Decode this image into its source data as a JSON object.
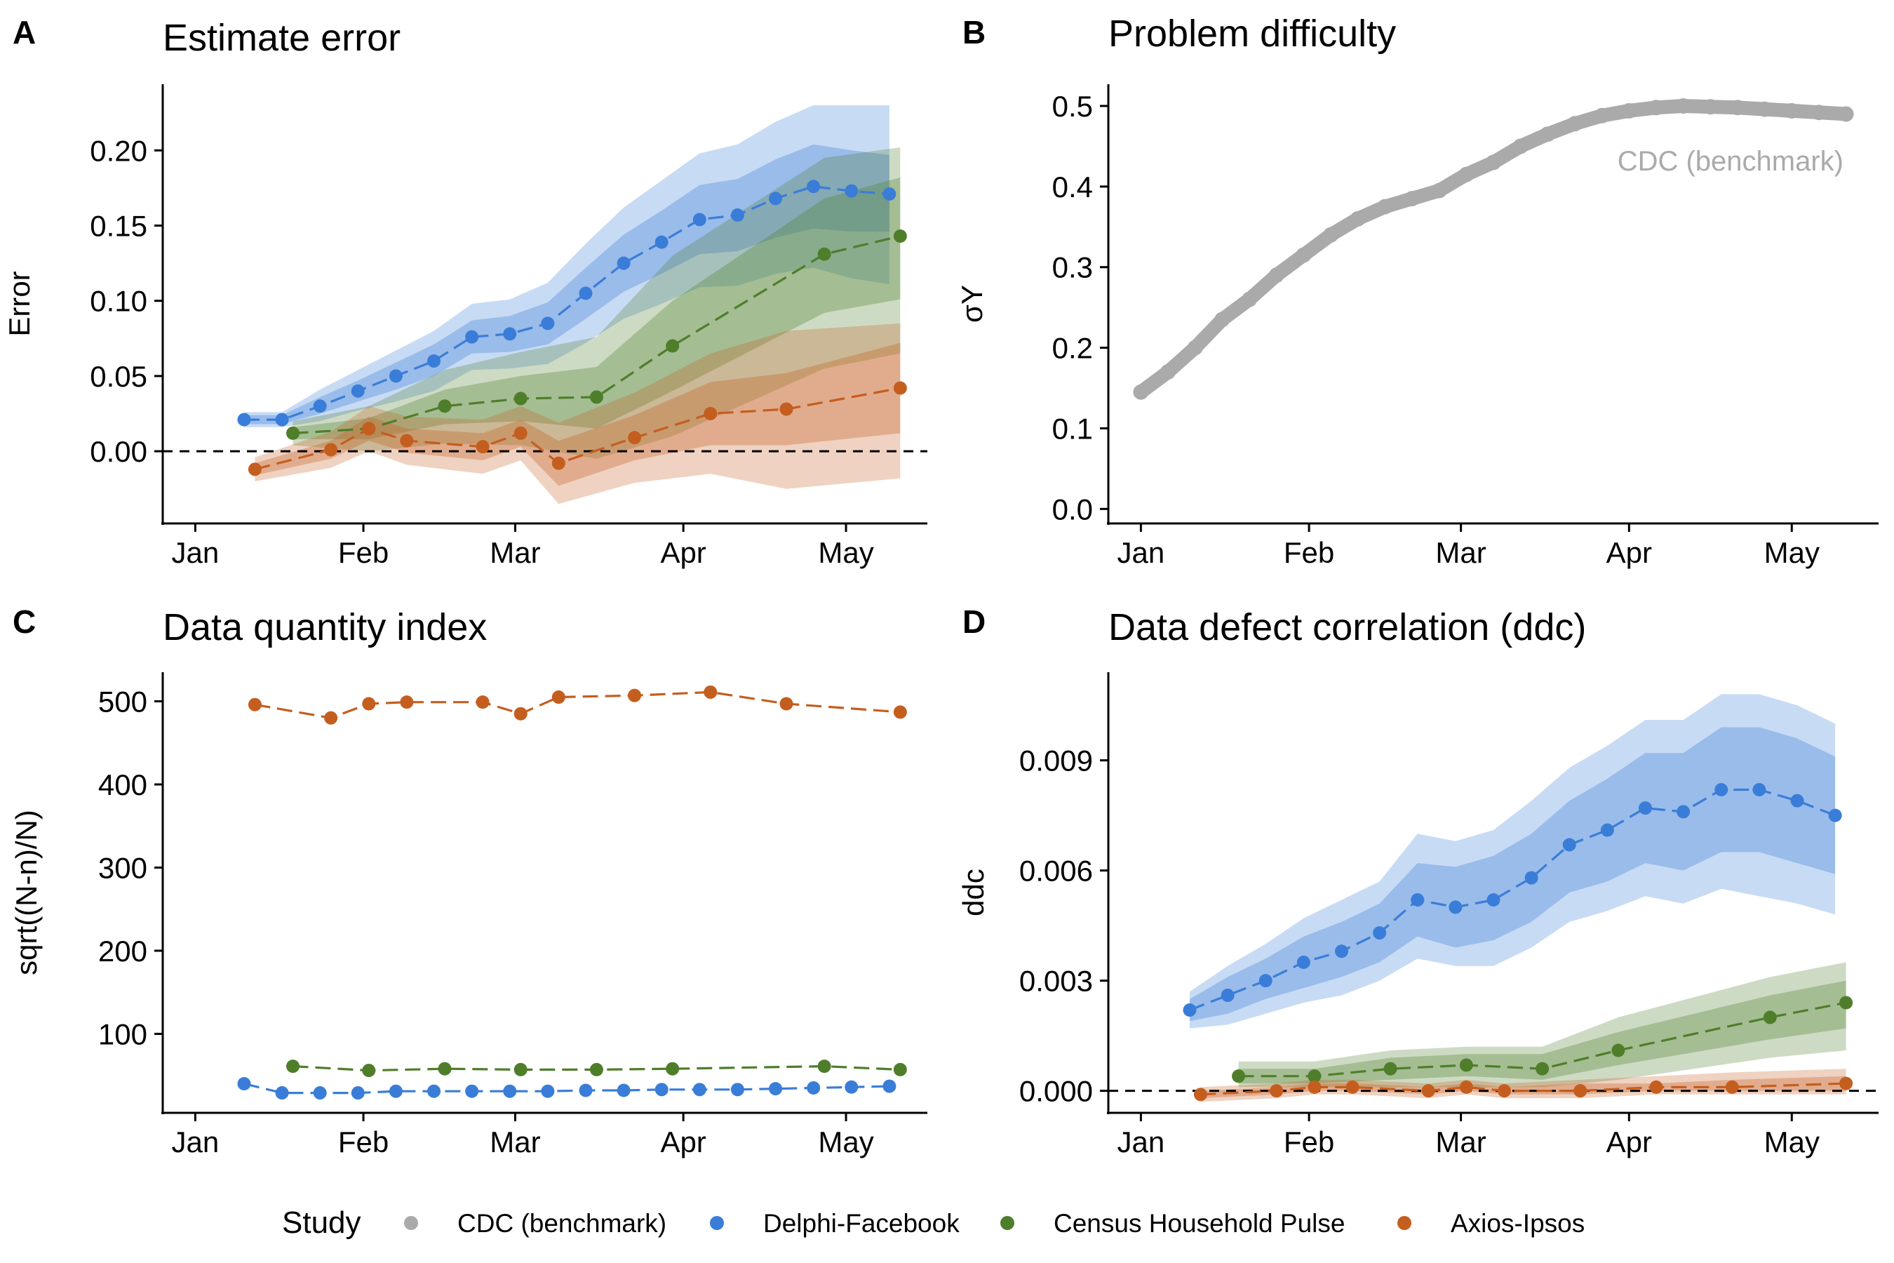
{
  "chart_data": [
    {
      "panel": "A",
      "type": "line",
      "title": "Estimate error",
      "ylabel": "Error",
      "xlabel": "",
      "x_ticks": [
        "Jan",
        "Feb",
        "Mar",
        "Apr",
        "May"
      ],
      "x_tick_days": [
        0,
        31,
        59,
        90,
        120
      ],
      "xlim": [
        -6,
        135
      ],
      "y_ticks": [
        "0.00",
        "0.05",
        "0.10",
        "0.15",
        "0.20"
      ],
      "y_tick_values": [
        0,
        0.05,
        0.1,
        0.15,
        0.2
      ],
      "ylim": [
        -0.048,
        0.244
      ],
      "reference_line": 0,
      "series": [
        {
          "name": "Delphi-Facebook",
          "color": "#3a7dd8",
          "x": [
            9,
            16,
            23,
            30,
            37,
            44,
            51,
            58,
            65,
            72,
            79,
            86,
            93,
            100,
            107,
            114,
            121,
            128
          ],
          "y": [
            0.021,
            0.021,
            0.03,
            0.04,
            0.05,
            0.06,
            0.076,
            0.078,
            0.085,
            0.105,
            0.125,
            0.139,
            0.154,
            0.157,
            0.168,
            0.176,
            0.173,
            0.171
          ],
          "band50_lo": [
            0.018,
            0.018,
            0.025,
            0.033,
            0.041,
            0.05,
            0.065,
            0.066,
            0.071,
            0.088,
            0.106,
            0.118,
            0.131,
            0.133,
            0.142,
            0.148,
            0.146,
            0.146
          ],
          "band50_hi": [
            0.024,
            0.024,
            0.036,
            0.047,
            0.059,
            0.071,
            0.087,
            0.09,
            0.099,
            0.122,
            0.144,
            0.16,
            0.177,
            0.181,
            0.194,
            0.204,
            0.2,
            0.197
          ],
          "band95_lo": [
            0.016,
            0.016,
            0.02,
            0.027,
            0.033,
            0.04,
            0.054,
            0.055,
            0.058,
            0.072,
            0.088,
            0.098,
            0.109,
            0.11,
            0.118,
            0.122,
            0.115,
            0.111
          ],
          "band95_hi": [
            0.026,
            0.026,
            0.041,
            0.054,
            0.067,
            0.08,
            0.098,
            0.101,
            0.112,
            0.138,
            0.162,
            0.18,
            0.198,
            0.204,
            0.219,
            0.23,
            0.23,
            0.23
          ]
        },
        {
          "name": "Census Household Pulse",
          "color": "#4e7e2a",
          "x": [
            18,
            32,
            46,
            60,
            74,
            88,
            116,
            130
          ],
          "y": [
            0.012,
            0.015,
            0.03,
            0.035,
            0.036,
            0.07,
            0.131,
            0.143
          ],
          "band50_lo": [
            0.008,
            0.008,
            0.018,
            0.02,
            0.015,
            0.04,
            0.092,
            0.101
          ],
          "band50_hi": [
            0.016,
            0.022,
            0.041,
            0.05,
            0.056,
            0.1,
            0.168,
            0.182
          ],
          "band95_lo": [
            0.004,
            0.0,
            0.005,
            0.004,
            -0.005,
            0.01,
            0.055,
            0.065
          ],
          "band95_hi": [
            0.02,
            0.03,
            0.054,
            0.066,
            0.076,
            0.13,
            0.195,
            0.202
          ]
        },
        {
          "name": "Axios-Ipsos",
          "color": "#c45e1f",
          "x": [
            11,
            25,
            32,
            39,
            53,
            60,
            67,
            81,
            95,
            109,
            130
          ],
          "y": [
            -0.012,
            0.001,
            0.015,
            0.007,
            0.003,
            0.012,
            -0.008,
            0.009,
            0.025,
            0.028,
            0.042
          ],
          "band50_lo": [
            -0.016,
            -0.005,
            0.007,
            -0.001,
            -0.006,
            0.003,
            -0.023,
            -0.006,
            0.004,
            0.004,
            0.012
          ],
          "band50_hi": [
            -0.008,
            0.007,
            0.023,
            0.015,
            0.012,
            0.021,
            0.007,
            0.024,
            0.046,
            0.052,
            0.072
          ],
          "band95_lo": [
            -0.02,
            -0.011,
            0.0,
            -0.009,
            -0.015,
            -0.006,
            -0.035,
            -0.021,
            -0.015,
            -0.025,
            -0.018
          ],
          "band95_hi": [
            -0.004,
            0.013,
            0.03,
            0.023,
            0.021,
            0.03,
            0.019,
            0.039,
            0.065,
            0.08,
            0.085
          ]
        }
      ]
    },
    {
      "panel": "B",
      "type": "line",
      "title": "Problem difficulty",
      "ylabel": "σY",
      "xlabel": "",
      "x_ticks": [
        "Jan",
        "Feb",
        "Mar",
        "Apr",
        "May"
      ],
      "x_tick_days": [
        0,
        31,
        59,
        90,
        120
      ],
      "xlim": [
        -6,
        136
      ],
      "y_ticks": [
        "0.0",
        "0.1",
        "0.2",
        "0.3",
        "0.4",
        "0.5"
      ],
      "y_tick_values": [
        0,
        0.1,
        0.2,
        0.3,
        0.4,
        0.5
      ],
      "ylim": [
        -0.018,
        0.527
      ],
      "annotation": "CDC (benchmark)",
      "series": [
        {
          "name": "CDC (benchmark)",
          "color": "#aaaaaa",
          "x": [
            0,
            5,
            10,
            15,
            20,
            25,
            30,
            35,
            40,
            45,
            50,
            55,
            60,
            65,
            70,
            75,
            80,
            85,
            90,
            95,
            100,
            105,
            110,
            115,
            120,
            125,
            130
          ],
          "y": [
            0.145,
            0.17,
            0.2,
            0.235,
            0.26,
            0.29,
            0.315,
            0.34,
            0.36,
            0.375,
            0.385,
            0.395,
            0.415,
            0.43,
            0.45,
            0.465,
            0.478,
            0.488,
            0.494,
            0.498,
            0.5,
            0.499,
            0.498,
            0.496,
            0.494,
            0.492,
            0.49
          ]
        }
      ]
    },
    {
      "panel": "C",
      "type": "line",
      "title": "Data quantity index",
      "ylabel": "sqrt((N-n)/N)",
      "xlabel": "",
      "x_ticks": [
        "Jan",
        "Feb",
        "Mar",
        "Apr",
        "May"
      ],
      "x_tick_days": [
        0,
        31,
        59,
        90,
        120
      ],
      "xlim": [
        -6,
        135
      ],
      "y_ticks": [
        "100",
        "200",
        "300",
        "400",
        "500"
      ],
      "y_tick_values": [
        100,
        200,
        300,
        400,
        500
      ],
      "ylim": [
        5,
        535
      ],
      "series": [
        {
          "name": "Axios-Ipsos",
          "color": "#c45e1f",
          "x": [
            11,
            25,
            32,
            39,
            53,
            60,
            67,
            81,
            95,
            109,
            130
          ],
          "y": [
            496,
            480,
            497,
            499,
            499,
            485,
            505,
            507,
            511,
            497,
            487
          ]
        },
        {
          "name": "Census Household Pulse",
          "color": "#4e7e2a",
          "x": [
            18,
            32,
            46,
            60,
            74,
            88,
            116,
            130
          ],
          "y": [
            61,
            56,
            58,
            57,
            57,
            58,
            61,
            57
          ]
        },
        {
          "name": "Delphi-Facebook",
          "color": "#3a7dd8",
          "x": [
            9,
            16,
            23,
            30,
            37,
            44,
            51,
            58,
            65,
            72,
            79,
            86,
            93,
            100,
            107,
            114,
            121,
            128
          ],
          "y": [
            40,
            29,
            29,
            29,
            31,
            31,
            31,
            31,
            31,
            32,
            32,
            33,
            33,
            33,
            34,
            35,
            36,
            37
          ]
        }
      ]
    },
    {
      "panel": "D",
      "type": "line",
      "title": "Data defect correlation (ddc)",
      "ylabel": "ddc",
      "xlabel": "",
      "x_ticks": [
        "Jan",
        "Feb",
        "Mar",
        "Apr",
        "May"
      ],
      "x_tick_days": [
        0,
        31,
        59,
        90,
        120
      ],
      "xlim": [
        -6,
        136
      ],
      "y_ticks": [
        "0.000",
        "0.003",
        "0.006",
        "0.009"
      ],
      "y_tick_values": [
        0,
        0.003,
        0.006,
        0.009
      ],
      "ylim": [
        -0.0006,
        0.0114
      ],
      "reference_line": 0,
      "series": [
        {
          "name": "Delphi-Facebook",
          "color": "#3a7dd8",
          "x": [
            9,
            16,
            23,
            30,
            37,
            44,
            51,
            58,
            65,
            72,
            79,
            86,
            93,
            100,
            107,
            114,
            121,
            128
          ],
          "y": [
            0.0022,
            0.0026,
            0.003,
            0.0035,
            0.0038,
            0.0043,
            0.0052,
            0.005,
            0.0052,
            0.0058,
            0.0067,
            0.0071,
            0.0077,
            0.0076,
            0.0082,
            0.0082,
            0.0079,
            0.0075
          ],
          "band50_lo": [
            0.0019,
            0.0021,
            0.0025,
            0.0028,
            0.0031,
            0.0035,
            0.0042,
            0.0039,
            0.0041,
            0.0046,
            0.0054,
            0.0057,
            0.0062,
            0.006,
            0.0065,
            0.0065,
            0.0062,
            0.0059
          ],
          "band50_hi": [
            0.0025,
            0.0031,
            0.0036,
            0.0042,
            0.0046,
            0.0051,
            0.0062,
            0.0061,
            0.0064,
            0.007,
            0.0079,
            0.0085,
            0.0092,
            0.0092,
            0.0099,
            0.0099,
            0.0096,
            0.0091
          ],
          "band95_lo": [
            0.0017,
            0.0018,
            0.0021,
            0.0024,
            0.0026,
            0.003,
            0.0036,
            0.0034,
            0.0034,
            0.0039,
            0.0046,
            0.0049,
            0.0053,
            0.0051,
            0.0055,
            0.0053,
            0.0051,
            0.0048
          ],
          "band95_hi": [
            0.0027,
            0.0034,
            0.004,
            0.0047,
            0.0052,
            0.0057,
            0.007,
            0.0068,
            0.0071,
            0.0079,
            0.0088,
            0.0094,
            0.0101,
            0.0101,
            0.0108,
            0.0108,
            0.0105,
            0.01
          ]
        },
        {
          "name": "Census Household Pulse",
          "color": "#4e7e2a",
          "x": [
            18,
            32,
            46,
            60,
            74,
            88,
            116,
            130
          ],
          "y": [
            0.0004,
            0.0004,
            0.0006,
            0.0007,
            0.0006,
            0.0011,
            0.002,
            0.0024
          ],
          "band50_lo": [
            0.0002,
            0.0002,
            0.0003,
            0.0004,
            0.0003,
            0.0007,
            0.0014,
            0.0017
          ],
          "band50_hi": [
            0.0006,
            0.0006,
            0.0009,
            0.001,
            0.001,
            0.0016,
            0.0026,
            0.003
          ],
          "band95_lo": [
            0.0001,
            0.0001,
            0.0001,
            0.0001,
            0.0001,
            0.0003,
            0.0009,
            0.0011
          ],
          "band95_hi": [
            0.0008,
            0.0008,
            0.0011,
            0.0012,
            0.0012,
            0.002,
            0.0031,
            0.0035
          ]
        },
        {
          "name": "Axios-Ipsos",
          "color": "#c45e1f",
          "x": [
            11,
            25,
            32,
            39,
            53,
            60,
            67,
            81,
            95,
            109,
            130
          ],
          "y": [
            -0.0001,
            0.0,
            0.0001,
            0.0001,
            0.0,
            0.0001,
            0.0,
            0.0,
            0.0001,
            0.0001,
            0.0002
          ],
          "band50_lo": [
            -0.0002,
            -0.0001,
            0.0,
            0.0,
            -0.0001,
            0.0,
            -0.0001,
            -0.0001,
            0.0,
            0.0,
            0.0
          ],
          "band50_hi": [
            0.0,
            0.0001,
            0.0002,
            0.0002,
            0.0001,
            0.0002,
            0.0001,
            0.0002,
            0.0002,
            0.0003,
            0.0004
          ],
          "band95_lo": [
            -0.0003,
            -0.0002,
            -0.0001,
            -0.0001,
            -0.0002,
            -0.0001,
            -0.0002,
            -0.0002,
            -0.0001,
            -0.0001,
            -0.0001
          ],
          "band95_hi": [
            0.0001,
            0.0002,
            0.0003,
            0.0003,
            0.0002,
            0.0003,
            0.0002,
            0.0003,
            0.0004,
            0.0005,
            0.0006
          ]
        }
      ]
    }
  ],
  "legend": {
    "title": "Study",
    "items": [
      {
        "label": "CDC (benchmark)",
        "color": "#aaaaaa"
      },
      {
        "label": "Delphi-Facebook",
        "color": "#3a7dd8"
      },
      {
        "label": "Census Household Pulse",
        "color": "#4e7e2a"
      },
      {
        "label": "Axios-Ipsos",
        "color": "#c45e1f"
      }
    ]
  }
}
